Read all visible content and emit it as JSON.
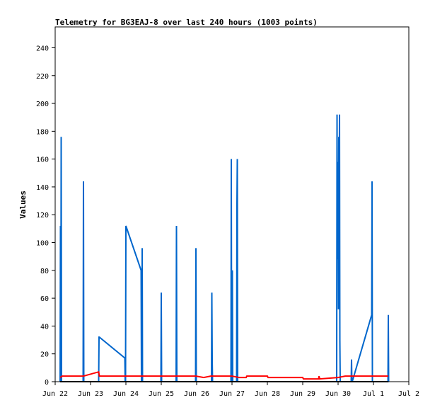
{
  "chart_data": {
    "type": "line",
    "title": "Telemetry for BG3EAJ-8 over last 240 hours (1003 points)",
    "xlabel": "",
    "ylabel": "Values",
    "ylim": [
      0,
      255
    ],
    "yticks": [
      0,
      20,
      40,
      60,
      80,
      100,
      120,
      140,
      160,
      180,
      200,
      220,
      240
    ],
    "xlim": [
      "Jun 22",
      "Jul 2"
    ],
    "xticks": [
      "Jun 22",
      "Jun 23",
      "Jun 24",
      "Jun 25",
      "Jun 26",
      "Jun 27",
      "Jun 28",
      "Jun 29",
      "Jun 30",
      "Jul 1",
      "Jul 2"
    ],
    "grid": false,
    "legend": "none",
    "series": [
      {
        "color": "#0066cc",
        "points": [
          [
            0.14,
            0
          ],
          [
            0.15,
            112
          ],
          [
            0.16,
            0
          ],
          [
            0.17,
            176
          ],
          [
            0.18,
            0
          ],
          [
            0.79,
            0
          ],
          [
            0.8,
            144
          ],
          [
            0.81,
            0
          ],
          [
            1.23,
            0
          ],
          [
            1.24,
            32
          ],
          [
            1.25,
            32
          ],
          [
            1.97,
            17
          ],
          [
            1.98,
            0
          ],
          [
            1.99,
            0
          ],
          [
            2.0,
            112
          ],
          [
            2.43,
            80
          ],
          [
            2.44,
            0
          ],
          [
            2.45,
            0
          ],
          [
            2.46,
            96
          ],
          [
            2.47,
            0
          ],
          [
            2.99,
            0
          ],
          [
            3.0,
            64
          ],
          [
            3.01,
            0
          ],
          [
            3.42,
            0
          ],
          [
            3.43,
            112
          ],
          [
            3.44,
            0
          ],
          [
            3.97,
            0
          ],
          [
            3.98,
            96
          ],
          [
            3.99,
            0
          ],
          [
            4.42,
            0
          ],
          [
            4.43,
            64
          ],
          [
            4.44,
            16
          ],
          [
            4.45,
            0
          ],
          [
            4.97,
            0
          ],
          [
            4.98,
            160
          ],
          [
            4.99,
            0
          ],
          [
            5.01,
            80
          ],
          [
            5.02,
            0
          ],
          [
            5.13,
            0
          ],
          [
            5.14,
            128
          ],
          [
            5.15,
            160
          ],
          [
            5.16,
            0
          ],
          [
            7.96,
            0
          ],
          [
            7.97,
            192
          ],
          [
            7.98,
            88
          ],
          [
            7.99,
            124
          ],
          [
            8.0,
            158
          ],
          [
            8.01,
            52
          ],
          [
            8.02,
            176
          ],
          [
            8.03,
            110
          ],
          [
            8.04,
            192
          ],
          [
            8.05,
            30
          ],
          [
            8.06,
            0
          ],
          [
            8.37,
            0
          ],
          [
            8.38,
            16
          ],
          [
            8.39,
            0
          ],
          [
            8.4,
            0
          ],
          [
            8.95,
            48
          ],
          [
            8.96,
            144
          ],
          [
            8.97,
            0
          ],
          [
            9.41,
            0
          ],
          [
            9.42,
            48
          ],
          [
            9.43,
            0
          ]
        ]
      },
      {
        "color": "#ff0000",
        "points": [
          [
            0.14,
            3
          ],
          [
            0.2,
            4
          ],
          [
            0.8,
            4
          ],
          [
            1.23,
            7
          ],
          [
            1.25,
            4
          ],
          [
            3.0,
            4
          ],
          [
            3.98,
            4
          ],
          [
            4.2,
            3
          ],
          [
            4.4,
            4
          ],
          [
            5.0,
            4
          ],
          [
            5.2,
            3
          ],
          [
            5.4,
            3
          ],
          [
            5.42,
            4
          ],
          [
            6.0,
            4
          ],
          [
            6.02,
            3
          ],
          [
            7.0,
            3
          ],
          [
            7.02,
            2
          ],
          [
            7.45,
            2
          ],
          [
            7.46,
            4
          ],
          [
            7.48,
            2
          ],
          [
            8.0,
            3
          ],
          [
            8.2,
            4
          ],
          [
            9.0,
            4
          ],
          [
            9.42,
            4
          ]
        ]
      },
      {
        "color": "#000000",
        "points": [
          [
            0.14,
            0
          ],
          [
            9.42,
            0
          ]
        ]
      }
    ]
  }
}
